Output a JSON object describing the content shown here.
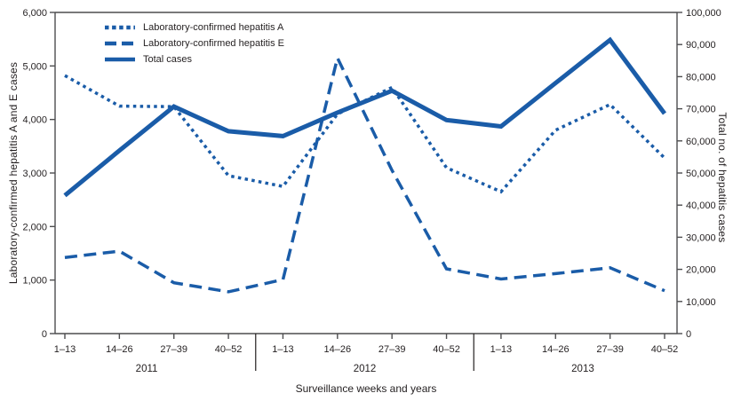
{
  "figure": {
    "x_axis_title": "Surveillance weeks and years",
    "y_left_axis_title": "Laboratory-confirmed hepatitis A and E cases",
    "y_right_axis_title": "Total no. of hepatitis cases"
  },
  "colors": {
    "line_blue": "#1A5CA8",
    "text": "#231F20",
    "axis": "#4D4D4F"
  },
  "chart_data": {
    "type": "line",
    "title": "",
    "xlabel": "Surveillance weeks and years",
    "ylabel_left": "Laboratory-confirmed hepatitis A and E cases",
    "ylabel_right": "Total no. of hepatitis cases",
    "categories": [
      "1–13",
      "14–26",
      "27–39",
      "40–52",
      "1–13",
      "14–26",
      "27–39",
      "40–52",
      "1–13",
      "14–26",
      "27–39",
      "40–52"
    ],
    "year_groups": [
      {
        "label": "2011",
        "start": 0,
        "end": 3
      },
      {
        "label": "2012",
        "start": 4,
        "end": 7
      },
      {
        "label": "2013",
        "start": 8,
        "end": 11
      }
    ],
    "left_axis": {
      "min": 0,
      "max": 6000,
      "tick_step": 1000
    },
    "right_axis": {
      "min": 0,
      "max": 100000,
      "tick_step": 10000
    },
    "grid": false,
    "legend_position": "top-left-inside",
    "series": [
      {
        "name": "Laboratory-confirmed hepatitis A",
        "axis": "left",
        "line_style": "dotted",
        "values": [
          4820,
          4250,
          4240,
          2950,
          2750,
          4100,
          4600,
          3100,
          2650,
          3800,
          4280,
          3280
        ]
      },
      {
        "name": "Laboratory-confirmed hepatitis E",
        "axis": "left",
        "line_style": "dashed",
        "values": [
          1420,
          1540,
          950,
          780,
          1010,
          5150,
          3050,
          1210,
          1020,
          1120,
          1230,
          800
        ]
      },
      {
        "name": "Total cases",
        "axis": "right",
        "line_style": "solid",
        "values": [
          43000,
          57000,
          70700,
          63000,
          61500,
          68800,
          75600,
          66500,
          64500,
          78000,
          91400,
          68500
        ]
      }
    ]
  }
}
